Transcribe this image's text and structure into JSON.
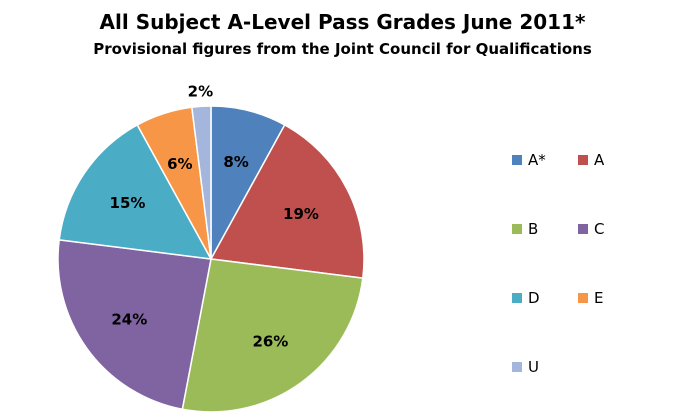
{
  "chart_data": {
    "type": "pie",
    "title": "All Subject A-Level Pass Grades  June 2011*",
    "subtitle": "Provisional figures from the Joint Council for Qualifications",
    "categories": [
      "A*",
      "A",
      "B",
      "C",
      "D",
      "E",
      "U"
    ],
    "values": [
      8,
      19,
      26,
      24,
      15,
      6,
      2
    ],
    "data_labels": [
      "8%",
      "19%",
      "26%",
      "24%",
      "15%",
      "6%",
      "2%"
    ],
    "colors": [
      "#4F81BD",
      "#C0504D",
      "#9BBB59",
      "#8064A2",
      "#4BACC6",
      "#F79646",
      "#A5B6DC"
    ],
    "legend_position": "right",
    "start_angle_deg": 0,
    "direction": "clockwise"
  }
}
